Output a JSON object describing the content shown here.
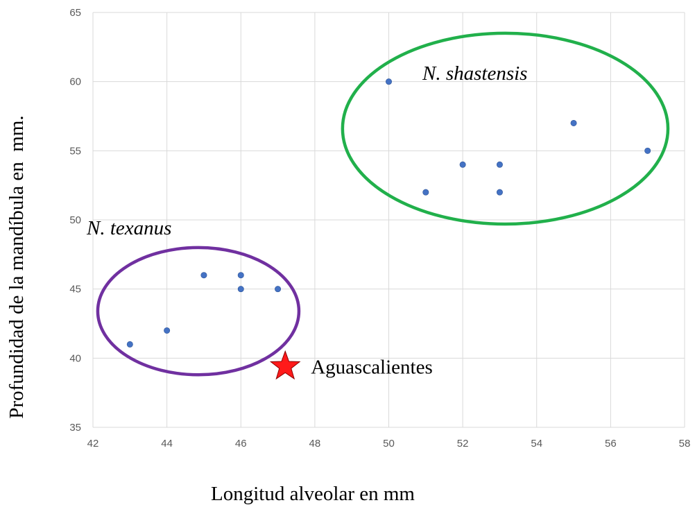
{
  "chart_data": {
    "type": "scatter",
    "xlabel": "Longitud alveolar en mm",
    "ylabel": "Profundidad de la mandíbula en  mm.",
    "xlim": [
      42,
      58
    ],
    "ylim": [
      35,
      65
    ],
    "x_ticks": [
      42,
      44,
      46,
      48,
      50,
      52,
      54,
      56,
      58
    ],
    "y_ticks": [
      35,
      40,
      45,
      50,
      55,
      60,
      65
    ],
    "grid": true,
    "point_color": "#4472c4",
    "series": [
      {
        "points": [
          {
            "x": 43,
            "y": 41
          },
          {
            "x": 44,
            "y": 42
          },
          {
            "x": 45,
            "y": 46
          },
          {
            "x": 46,
            "y": 46
          },
          {
            "x": 46,
            "y": 45
          },
          {
            "x": 47,
            "y": 45
          },
          {
            "x": 50,
            "y": 60
          },
          {
            "x": 51,
            "y": 52
          },
          {
            "x": 52,
            "y": 54
          },
          {
            "x": 53,
            "y": 54
          },
          {
            "x": 53,
            "y": 52
          },
          {
            "x": 55,
            "y": 57
          },
          {
            "x": 57,
            "y": 55
          }
        ]
      }
    ],
    "annotations": {
      "groups": [
        {
          "label": "N. texanus",
          "color": "#7030a0",
          "center": {
            "x": 44.85,
            "y": 43.4
          },
          "radius_x": 2.72,
          "radius_y": 4.6
        },
        {
          "label": "N. shastensis",
          "color": "#21b04b",
          "center": {
            "x": 53.15,
            "y": 56.6
          },
          "radius_x": 4.4,
          "radius_y": 6.9
        }
      ],
      "star": {
        "label": "Aguascalientes",
        "color": "#ff1a1a",
        "x": 47.2,
        "y": 39.4
      }
    }
  }
}
